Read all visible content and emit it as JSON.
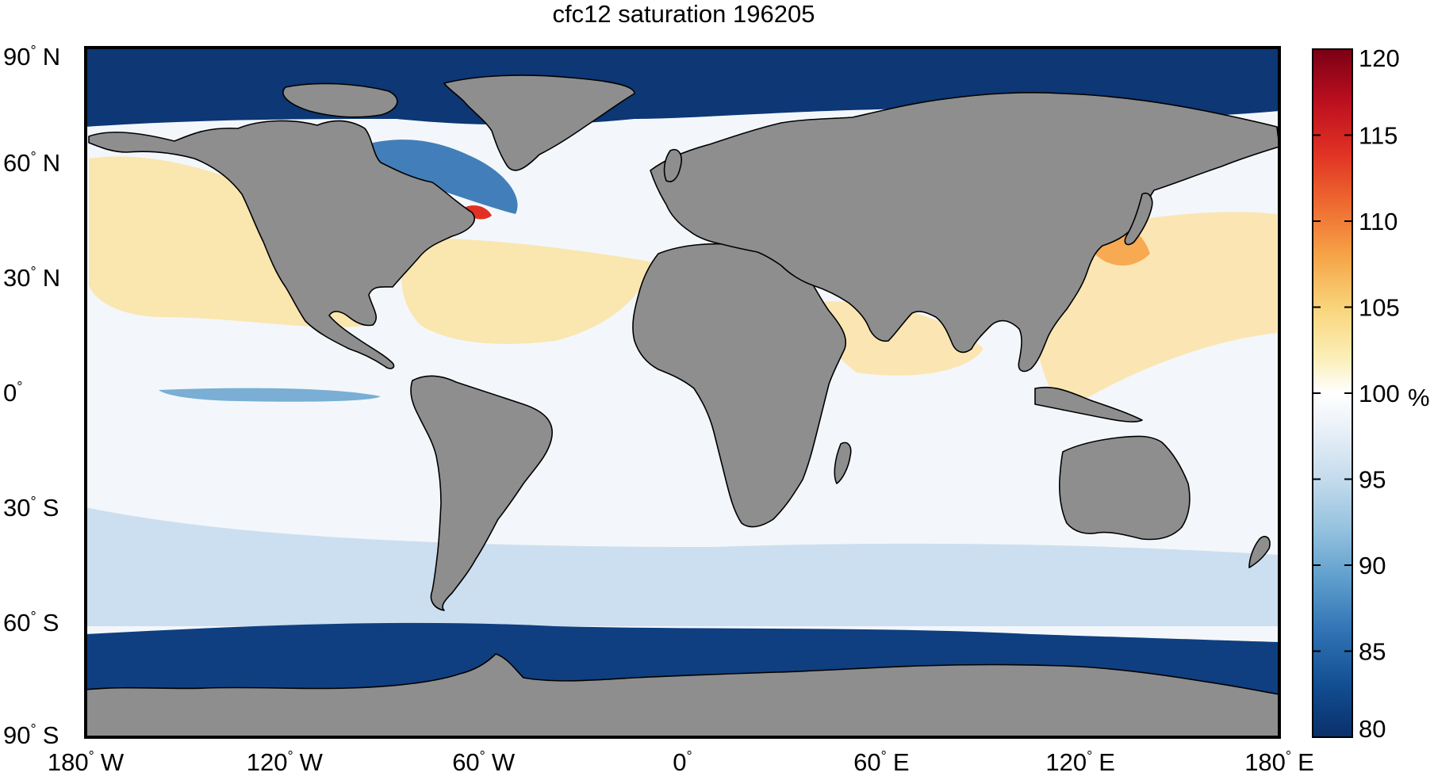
{
  "title": "cfc12 saturation 196205",
  "lat_ticks": [
    {
      "lat": 90,
      "label": "90",
      "hemi": "N"
    },
    {
      "lat": 60,
      "label": "60",
      "hemi": "N"
    },
    {
      "lat": 30,
      "label": "30",
      "hemi": "N"
    },
    {
      "lat": 0,
      "label": "0",
      "hemi": ""
    },
    {
      "lat": -30,
      "label": "30",
      "hemi": "S"
    },
    {
      "lat": -60,
      "label": "60",
      "hemi": "S"
    },
    {
      "lat": -90,
      "label": "90",
      "hemi": "S"
    }
  ],
  "lon_ticks": [
    {
      "lon": -180,
      "label": "180",
      "hemi": "W"
    },
    {
      "lon": -120,
      "label": "120",
      "hemi": "W"
    },
    {
      "lon": -60,
      "label": "60",
      "hemi": "W"
    },
    {
      "lon": 0,
      "label": "0",
      "hemi": ""
    },
    {
      "lon": 60,
      "label": "60",
      "hemi": "E"
    },
    {
      "lon": 120,
      "label": "120",
      "hemi": "E"
    },
    {
      "lon": 180,
      "label": "180",
      "hemi": "E"
    }
  ],
  "colorbar": {
    "min": 80,
    "max": 120,
    "ticks": [
      {
        "value": 120,
        "label": "120"
      },
      {
        "value": 115,
        "label": "115"
      },
      {
        "value": 110,
        "label": "110"
      },
      {
        "value": 105,
        "label": "105"
      },
      {
        "value": 100,
        "label": "100"
      },
      {
        "value": 95,
        "label": "95"
      },
      {
        "value": 90,
        "label": "90"
      },
      {
        "value": 85,
        "label": "85"
      },
      {
        "value": 80,
        "label": "80"
      }
    ],
    "unit": "%",
    "stops": [
      {
        "value": 80,
        "color": "#0a2f6a"
      },
      {
        "value": 83,
        "color": "#124e92"
      },
      {
        "value": 86,
        "color": "#2f71b3"
      },
      {
        "value": 89,
        "color": "#5b9bcb"
      },
      {
        "value": 92,
        "color": "#93c1de"
      },
      {
        "value": 95,
        "color": "#c4dbed"
      },
      {
        "value": 98,
        "color": "#eaf1f8"
      },
      {
        "value": 100,
        "color": "#ffffff"
      },
      {
        "value": 102,
        "color": "#fbefb8"
      },
      {
        "value": 105,
        "color": "#f9d47a"
      },
      {
        "value": 108,
        "color": "#f6a347"
      },
      {
        "value": 111,
        "color": "#ee6a30"
      },
      {
        "value": 114,
        "color": "#e03124"
      },
      {
        "value": 117,
        "color": "#bb0f1f"
      },
      {
        "value": 120,
        "color": "#7a0015"
      }
    ]
  },
  "colors": {
    "land": "#8e8e8e",
    "coast": "#000000"
  }
}
